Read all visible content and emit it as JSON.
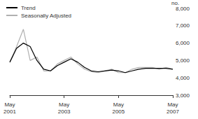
{
  "chart_data": {
    "type": "line",
    "y_label": "no.",
    "categories": [
      "May 2001",
      null,
      null,
      null,
      null,
      null,
      null,
      null,
      "May 2003",
      null,
      null,
      null,
      null,
      null,
      null,
      null,
      "May 2005",
      null,
      null,
      null,
      null,
      null,
      null,
      null,
      "May 2007"
    ],
    "series": [
      {
        "name": "Trend",
        "color": "#000000",
        "values": [
          4900,
          5700,
          6000,
          5800,
          5000,
          4500,
          4400,
          4700,
          4900,
          5100,
          4900,
          4600,
          4400,
          4350,
          4400,
          4450,
          4400,
          4300,
          4400,
          4500,
          4550,
          4550,
          4550,
          4550,
          4500
        ]
      },
      {
        "name": "Seasonally Adjusted",
        "color": "#b0b0b0",
        "values": [
          4900,
          5800,
          6800,
          5000,
          5200,
          4400,
          4400,
          4800,
          5000,
          5200,
          4800,
          4500,
          4350,
          4300,
          4400,
          4500,
          4300,
          4300,
          4500,
          4600,
          4600,
          4600,
          4500,
          4600,
          4500
        ]
      }
    ],
    "ylim": [
      3000,
      8000
    ],
    "yticks": [
      3000,
      4000,
      5000,
      6000,
      7000,
      8000
    ],
    "grid": false,
    "legend": "top-left"
  }
}
